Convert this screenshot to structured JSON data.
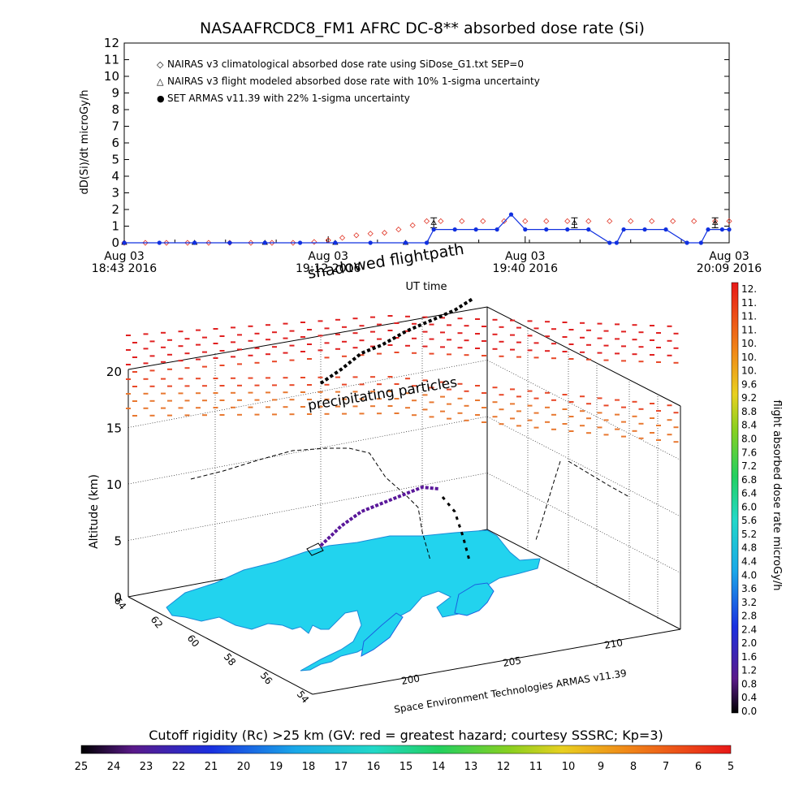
{
  "title": "NASAAFRCDC8_FM1 AFRC DC-8** absorbed dose rate (Si)",
  "top_panel": {
    "ylabel": "dD(Si)/dt microGy/h",
    "y_ticks": [
      "0",
      "1",
      "2",
      "3",
      "4",
      "5",
      "6",
      "7",
      "8",
      "9",
      "10",
      "11",
      "12"
    ],
    "x_ticks": [
      {
        "line1": "Aug 03",
        "line2": "18:43 2016"
      },
      {
        "line1": "Aug 03",
        "line2": "19:12 2016"
      },
      {
        "line1": "Aug 03",
        "line2": "19:40 2016"
      },
      {
        "line1": "Aug 03",
        "line2": "20:09 2016"
      }
    ],
    "xlabel": "UT time"
  },
  "legend": [
    {
      "symbol": "◇",
      "text": "NAIRAS v3 climatological absorbed dose rate using SiDose_G1.txt SEP=0",
      "color": "#e03020"
    },
    {
      "symbol": "△",
      "text": "NAIRAS v3 flight modeled absorbed dose rate with 10% 1-sigma uncertainty",
      "color": "#000000"
    },
    {
      "symbol": "●",
      "text": "SET ARMAS v11.39 with 22% 1-sigma uncertainty",
      "color": "#1030e0"
    }
  ],
  "chart_data": [
    {
      "type": "line",
      "title": "NASAAFRCDC8_FM1 AFRC DC-8** absorbed dose rate (Si)",
      "xlabel": "UT time",
      "ylabel": "dD(Si)/dt microGy/h",
      "ylim": [
        0,
        12
      ],
      "xlim": [
        "18:43",
        "20:09"
      ],
      "x_ticks": [
        "18:43",
        "19:12",
        "19:40",
        "20:09"
      ],
      "legend_position": "top-left",
      "grid": false,
      "series": [
        {
          "name": "NAIRAS v3 climatological absorbed dose rate using SiDose_G1.txt SEP=0",
          "marker": "diamond",
          "color": "#e03020",
          "points": [
            [
              0,
              0
            ],
            [
              3,
              0
            ],
            [
              6,
              0
            ],
            [
              9,
              0
            ],
            [
              12,
              0
            ],
            [
              15,
              0
            ],
            [
              18,
              0
            ],
            [
              21,
              0
            ],
            [
              24,
              0
            ],
            [
              27,
              0.05
            ],
            [
              29,
              0.15
            ],
            [
              31,
              0.3
            ],
            [
              33,
              0.45
            ],
            [
              35,
              0.55
            ],
            [
              37,
              0.6
            ],
            [
              39,
              0.8
            ],
            [
              41,
              1.05
            ],
            [
              43,
              1.3
            ],
            [
              45,
              1.3
            ],
            [
              48,
              1.3
            ],
            [
              51,
              1.3
            ],
            [
              54,
              1.3
            ],
            [
              57,
              1.3
            ],
            [
              60,
              1.3
            ],
            [
              63,
              1.3
            ],
            [
              66,
              1.3
            ],
            [
              69,
              1.3
            ],
            [
              72,
              1.3
            ],
            [
              75,
              1.3
            ],
            [
              78,
              1.3
            ],
            [
              81,
              1.3
            ],
            [
              84,
              1.3
            ],
            [
              86,
              1.3
            ]
          ]
        },
        {
          "name": "NAIRAS v3 flight modeled absorbed dose rate with 10% 1-sigma uncertainty",
          "marker": "triangle",
          "color": "#000000",
          "points": [
            [
              0,
              0
            ],
            [
              10,
              0
            ],
            [
              20,
              0
            ],
            [
              30,
              0
            ],
            [
              40,
              0
            ],
            [
              44,
              1.2
            ],
            [
              64,
              1.2
            ],
            [
              84,
              1.2
            ]
          ]
        },
        {
          "name": "SET ARMAS v11.39 with 22% 1-sigma uncertainty",
          "marker": "circle",
          "color": "#1030e0",
          "points": [
            [
              0,
              0
            ],
            [
              5,
              0
            ],
            [
              10,
              0
            ],
            [
              15,
              0
            ],
            [
              20,
              0
            ],
            [
              25,
              0
            ],
            [
              30,
              0
            ],
            [
              35,
              0
            ],
            [
              40,
              0
            ],
            [
              43,
              0
            ],
            [
              44,
              0.8
            ],
            [
              47,
              0.8
            ],
            [
              50,
              0.8
            ],
            [
              53,
              0.8
            ],
            [
              55,
              1.7
            ],
            [
              57,
              0.8
            ],
            [
              60,
              0.8
            ],
            [
              63,
              0.8
            ],
            [
              66,
              0.8
            ],
            [
              69,
              0
            ],
            [
              70,
              0
            ],
            [
              71,
              0.8
            ],
            [
              74,
              0.8
            ],
            [
              77,
              0.8
            ],
            [
              80,
              0
            ],
            [
              82,
              0
            ],
            [
              83,
              0.8
            ],
            [
              85,
              0.8
            ],
            [
              86,
              0.8
            ]
          ]
        }
      ]
    },
    {
      "type": "heatmap",
      "ylabel": "Altitude (km)",
      "z_ticks": [
        "0",
        "5",
        "10",
        "15",
        "20"
      ],
      "lat_ticks": [
        "64",
        "62",
        "60",
        "58",
        "56",
        "54"
      ],
      "lon_ticks": [
        "200",
        "205",
        "210"
      ]
    }
  ],
  "scene3d": {
    "ylabel": "Altitude (km)",
    "z_ticks": [
      "0",
      "5",
      "10",
      "15",
      "20"
    ],
    "lat_ticks": [
      "64",
      "62",
      "60",
      "58",
      "56",
      "54"
    ],
    "lon_ticks": [
      "200",
      "205",
      "210"
    ],
    "annotation_shadow": "shadowed flightpath",
    "annotation_particles": "precipitating particles",
    "credit": "Space Environment Technologies ARMAS v11.39"
  },
  "colorbar_right": {
    "label": "flight absorbed dose rate microGy/h",
    "ticks": [
      "12.",
      "11.",
      "11.",
      "11.",
      "10.",
      "10.",
      "10.",
      "9.6",
      "9.2",
      "8.8",
      "8.4",
      "8.0",
      "7.6",
      "7.2",
      "6.8",
      "6.4",
      "6.0",
      "5.6",
      "5.2",
      "4.8",
      "4.4",
      "4.0",
      "3.6",
      "3.2",
      "2.8",
      "2.4",
      "2.0",
      "1.6",
      "1.2",
      "0.8",
      "0.4",
      "0.0"
    ]
  },
  "colorbar_bottom": {
    "label": "Cutoff rigidity (Rc) >25 km (GV: red = greatest hazard; courtesy SSSRC; Kp=3)",
    "ticks": [
      "25",
      "24",
      "23",
      "22",
      "21",
      "20",
      "19",
      "18",
      "17",
      "16",
      "15",
      "14",
      "13",
      "12",
      "11",
      "10",
      "9",
      "8",
      "7",
      "6",
      "5"
    ]
  },
  "colors": {
    "nairas_clim": "#e03020",
    "nairas_flight": "#000000",
    "armas": "#1030e0",
    "land": "#22d3ee",
    "track": "#5a189a"
  }
}
